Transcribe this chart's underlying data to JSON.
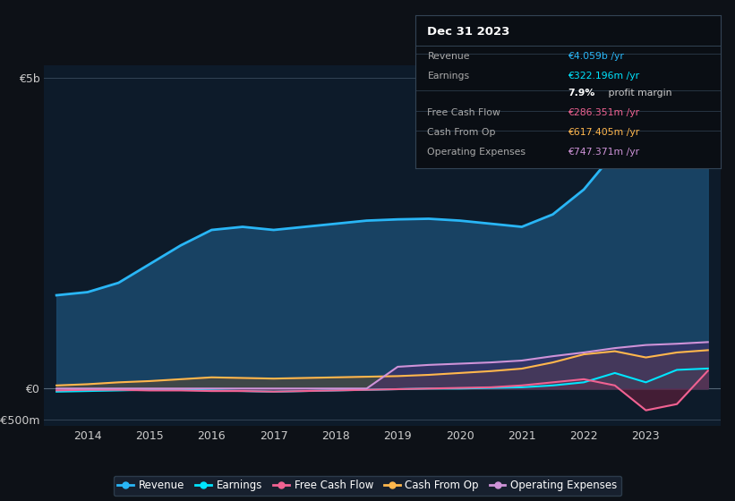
{
  "background_color": "#0d1117",
  "plot_bg_color": "#0d1b2a",
  "years": [
    2013.5,
    2014,
    2014.5,
    2015,
    2015.5,
    2016,
    2016.5,
    2017,
    2017.5,
    2018,
    2018.5,
    2019,
    2019.5,
    2020,
    2020.5,
    2021,
    2021.5,
    2022,
    2022.5,
    2023,
    2023.5,
    2024
  ],
  "revenue": [
    1.5,
    1.55,
    1.7,
    2.0,
    2.3,
    2.55,
    2.6,
    2.55,
    2.6,
    2.65,
    2.7,
    2.72,
    2.73,
    2.7,
    2.65,
    2.6,
    2.8,
    3.2,
    3.8,
    4.8,
    4.6,
    4.059
  ],
  "earnings": [
    -0.05,
    -0.04,
    -0.03,
    -0.02,
    -0.02,
    -0.03,
    -0.04,
    -0.05,
    -0.04,
    -0.03,
    -0.02,
    -0.01,
    0.0,
    0.0,
    0.01,
    0.02,
    0.05,
    0.1,
    0.25,
    0.1,
    0.3,
    0.322
  ],
  "free_cash_flow": [
    -0.03,
    -0.02,
    -0.02,
    -0.03,
    -0.03,
    -0.04,
    -0.04,
    -0.05,
    -0.04,
    -0.03,
    -0.02,
    -0.01,
    0.0,
    0.01,
    0.02,
    0.05,
    0.1,
    0.15,
    0.05,
    -0.35,
    -0.25,
    0.286
  ],
  "cash_from_op": [
    0.05,
    0.07,
    0.1,
    0.12,
    0.15,
    0.18,
    0.17,
    0.16,
    0.17,
    0.18,
    0.19,
    0.2,
    0.22,
    0.25,
    0.28,
    0.32,
    0.42,
    0.55,
    0.6,
    0.5,
    0.58,
    0.617
  ],
  "operating_expenses": [
    0.0,
    0.0,
    0.0,
    0.0,
    0.0,
    0.0,
    0.0,
    0.0,
    0.0,
    0.0,
    0.0,
    0.35,
    0.38,
    0.4,
    0.42,
    0.45,
    0.52,
    0.58,
    0.65,
    0.7,
    0.72,
    0.747
  ],
  "revenue_color": "#29b6f6",
  "earnings_color": "#00e5ff",
  "free_cash_flow_color": "#f06292",
  "cash_from_op_color": "#ffb74d",
  "operating_expenses_color": "#ce93d8",
  "fill_revenue_color": "#1a4a6e",
  "fill_earnings_color": "#1a5a5a",
  "fill_fcf_color": "#7a2040",
  "fill_cashop_color": "#7a5020",
  "fill_opex_color": "#4a2a6e",
  "ylim_min": -0.6,
  "ylim_max": 5.2,
  "ytick_labels": [
    "€5b",
    "€0",
    "-€500m"
  ],
  "ytick_values": [
    5.0,
    0.0,
    -0.5
  ],
  "xtick_labels": [
    "2014",
    "2015",
    "2016",
    "2017",
    "2018",
    "2019",
    "2020",
    "2021",
    "2022",
    "2023"
  ],
  "xtick_values": [
    2014,
    2015,
    2016,
    2017,
    2018,
    2019,
    2020,
    2021,
    2022,
    2023
  ],
  "hlines": [
    {
      "y": 5.0,
      "color": "#334455",
      "lw": 0.7
    },
    {
      "y": 0.0,
      "color": "#556677",
      "lw": 0.8
    },
    {
      "y": -0.5,
      "color": "#334455",
      "lw": 0.7
    }
  ],
  "legend_labels": [
    "Revenue",
    "Earnings",
    "Free Cash Flow",
    "Cash From Op",
    "Operating Expenses"
  ],
  "legend_colors": [
    "#29b6f6",
    "#00e5ff",
    "#f06292",
    "#ffb74d",
    "#ce93d8"
  ],
  "infobox": {
    "title": "Dec 31 2023",
    "title_color": "#ffffff",
    "bg_color": "#0a0e14",
    "border_color": "#334455",
    "sep_color": "#334455",
    "rows": [
      {
        "label": "Revenue",
        "value": "€4.059b /yr",
        "value_color": "#29b6f6",
        "label_color": "#aaaaaa",
        "bold_part": ""
      },
      {
        "label": "Earnings",
        "value": "€322.196m /yr",
        "value_color": "#00e5ff",
        "label_color": "#aaaaaa",
        "bold_part": ""
      },
      {
        "label": "",
        "value": "7.9% profit margin",
        "value_color": "#ffffff",
        "label_color": "#aaaaaa",
        "bold_part": "7.9%",
        "rest": " profit margin"
      },
      {
        "label": "Free Cash Flow",
        "value": "€286.351m /yr",
        "value_color": "#f06292",
        "label_color": "#aaaaaa",
        "bold_part": ""
      },
      {
        "label": "Cash From Op",
        "value": "€617.405m /yr",
        "value_color": "#ffb74d",
        "label_color": "#aaaaaa",
        "bold_part": ""
      },
      {
        "label": "Operating Expenses",
        "value": "€747.371m /yr",
        "value_color": "#ce93d8",
        "label_color": "#aaaaaa",
        "bold_part": ""
      }
    ]
  }
}
